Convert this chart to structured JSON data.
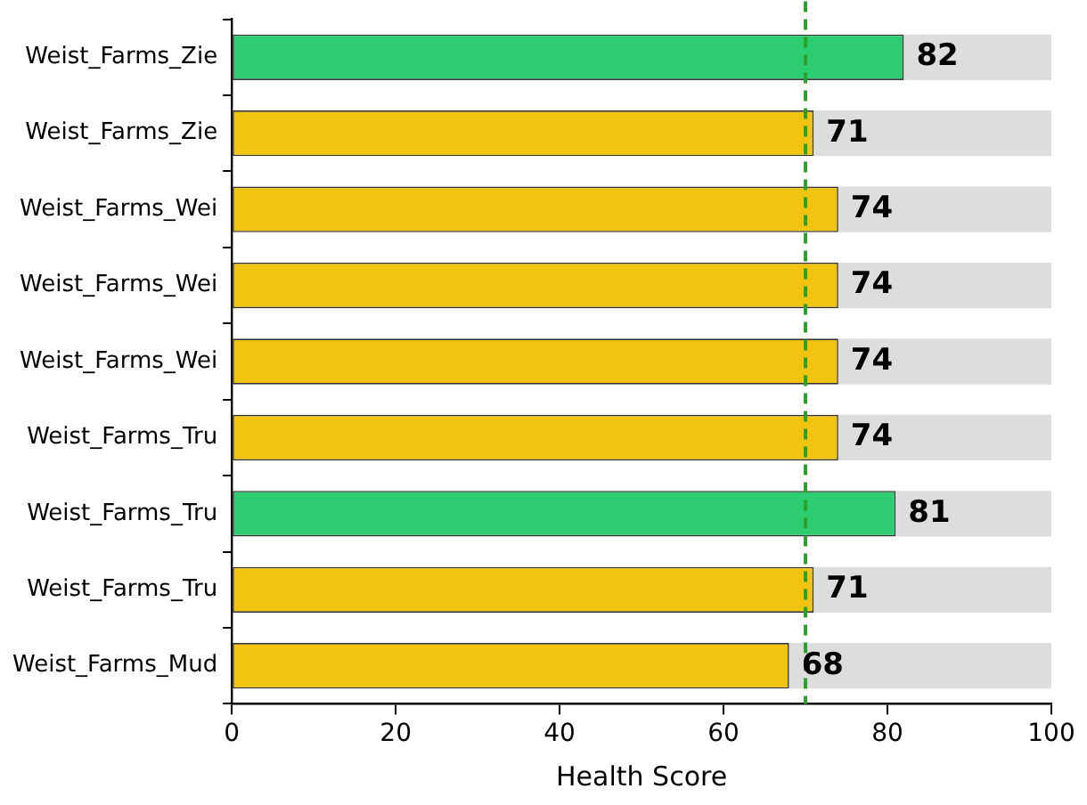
{
  "chart_data": {
    "type": "bar",
    "orientation": "horizontal",
    "stacked": true,
    "xlabel": "Health Score",
    "categories": [
      "Weist_Farms_Zie",
      "Weist_Farms_Zie",
      "Weist_Farms_Wei",
      "Weist_Farms_Wei",
      "Weist_Farms_Wei",
      "Weist_Farms_Tru",
      "Weist_Farms_Tru",
      "Weist_Farms_Tru",
      "Weist_Farms_Mud"
    ],
    "series": [
      {
        "colors": [
          "#2ecc71",
          "#f1c40f",
          "#f1c40f",
          "#f1c40f",
          "#f1c40f",
          "#f1c40f",
          "#2ecc71",
          "#f1c40f",
          "#f1c40f"
        ],
        "values": [
          82,
          71,
          74,
          74,
          74,
          74,
          81,
          71,
          68
        ],
        "value_labels": [
          "82",
          "71",
          "74",
          "74",
          "74",
          "74",
          "81",
          "71",
          "68"
        ]
      },
      {
        "color": "#dddddd",
        "values": [
          18,
          29,
          26,
          26,
          26,
          26,
          19,
          29,
          32
        ]
      }
    ],
    "xlim": [
      0,
      100
    ],
    "xticks": [
      0,
      20,
      40,
      60,
      80,
      100
    ],
    "grid": false,
    "legend": false,
    "ref_lines": [
      {
        "axis": "x",
        "value": 70,
        "color": "#2ca02c",
        "line_style": "dashed"
      }
    ]
  }
}
